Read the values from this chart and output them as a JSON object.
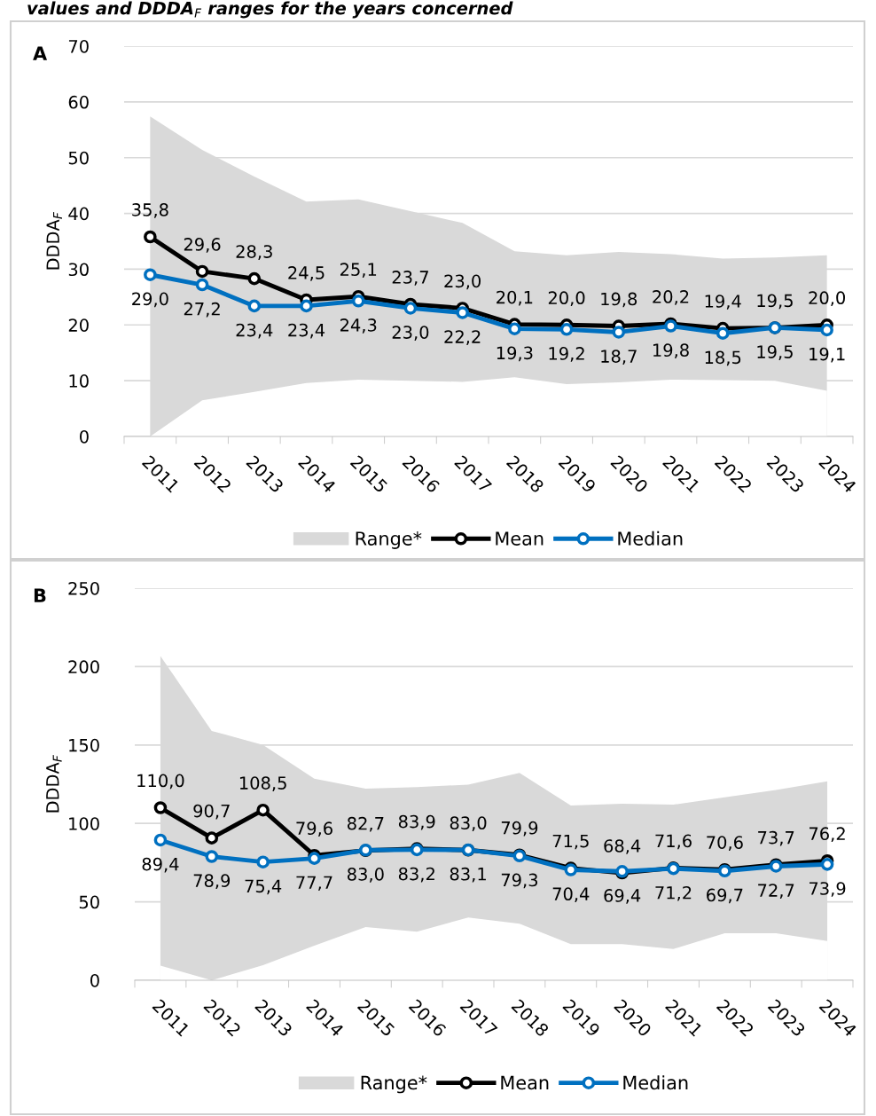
{
  "chart_data": [
    {
      "type": "line",
      "title": "values and DDDA$_{F}$ ranges for the years concerned",
      "annotations": [
        "A"
      ],
      "ylabel": "DDDA$_{F}$",
      "categories": [
        "2011",
        "2012",
        "2013",
        "2014",
        "2015",
        "2016",
        "2017",
        "2018",
        "2019",
        "2020",
        "2021",
        "2022",
        "2023",
        "2024"
      ],
      "ylim": [
        0,
        70
      ],
      "yticks": [
        0,
        10,
        20,
        30,
        40,
        50,
        60,
        70
      ],
      "grid": "y",
      "legend": "bottom",
      "marker": "circle",
      "line_style": "solid",
      "series": [
        {
          "name": "Range*",
          "type": "area",
          "marker": "none",
          "color": "#d9d9d9",
          "values": [
            57.4,
            51.4,
            46.6,
            42.1,
            42.5,
            40.4,
            38.3,
            33.2,
            32.5,
            33.1,
            32.7,
            31.9,
            32.1,
            32.5
          ]
        },
        {
          "type": "area",
          "marker": "none",
          "color": "#ffffff",
          "values": [
            0,
            6.5,
            8.0,
            9.6,
            10.2,
            10.0,
            9.8,
            10.6,
            9.4,
            9.7,
            10.2,
            10.1,
            10.0,
            8.2
          ]
        },
        {
          "name": "Mean",
          "color": "#000000",
          "values": [
            35.8,
            29.6,
            28.3,
            24.5,
            25.1,
            23.7,
            23.0,
            20.1,
            20.0,
            19.8,
            20.2,
            19.4,
            19.5,
            20.0
          ],
          "value_labels": [
            "35,8",
            "29,6",
            "28,3",
            "24,5",
            "25,1",
            "23,7",
            "23,0",
            "20,1",
            "20,0",
            "19,8",
            "20,2",
            "19,4",
            "19,5",
            "20,0"
          ]
        },
        {
          "name": "Median",
          "color": "#0070c0",
          "values": [
            29.0,
            27.2,
            23.4,
            23.4,
            24.3,
            23.0,
            22.2,
            19.3,
            19.2,
            18.7,
            19.8,
            18.5,
            19.5,
            19.1
          ],
          "value_labels": [
            "29,0",
            "27,2",
            "23,4",
            "23,4",
            "24,3",
            "23,0",
            "22,2",
            "19,3",
            "19,2",
            "18,7",
            "19,8",
            "18,5",
            "19,5",
            "19,1"
          ]
        }
      ]
    },
    {
      "type": "line",
      "annotations": [
        "B"
      ],
      "ylabel": "DDDA$_{F}$",
      "categories": [
        "2011",
        "2012",
        "2013",
        "2014",
        "2015",
        "2016",
        "2017",
        "2018",
        "2019",
        "2020",
        "2021",
        "2022",
        "2023",
        "2024"
      ],
      "ylim": [
        0,
        250
      ],
      "yticks": [
        0,
        50,
        100,
        150,
        200,
        250
      ],
      "grid": "y",
      "legend": "bottom",
      "marker": "circle",
      "line_style": "solid",
      "series": [
        {
          "name": "Range*",
          "type": "area",
          "marker": "none",
          "color": "#d9d9d9",
          "values": [
            206.8,
            159,
            150,
            128.5,
            122.2,
            123.2,
            124.7,
            132.2,
            111.4,
            112.6,
            112,
            116.6,
            121.3,
            126.9
          ]
        },
        {
          "type": "area",
          "marker": "none",
          "color": "#ffffff",
          "values": [
            9.3,
            0,
            9.6,
            22,
            34,
            31,
            40,
            36,
            23,
            23,
            20,
            30,
            30,
            25
          ]
        },
        {
          "name": "Mean",
          "color": "#000000",
          "values": [
            110.0,
            90.7,
            108.5,
            79.6,
            82.7,
            83.9,
            83.0,
            79.9,
            71.5,
            68.4,
            71.6,
            70.6,
            73.7,
            76.2
          ],
          "value_labels": [
            "110,0",
            "90,7",
            "108,5",
            "79,6",
            "82,7",
            "83,9",
            "83,0",
            "79,9",
            "71,5",
            "68,4",
            "71,6",
            "70,6",
            "73,7",
            "76,2"
          ]
        },
        {
          "name": "Median",
          "color": "#0070c0",
          "values": [
            89.4,
            78.9,
            75.4,
            77.7,
            83.0,
            83.2,
            83.1,
            79.3,
            70.4,
            69.4,
            71.2,
            69.7,
            72.7,
            73.9
          ],
          "value_labels": [
            "89,4",
            "78,9",
            "75,4",
            "77,7",
            "83,0",
            "83,2",
            "83,1",
            "79,3",
            "70,4",
            "69,4",
            "71,2",
            "69,7",
            "72,7",
            "73,9"
          ]
        }
      ]
    }
  ]
}
